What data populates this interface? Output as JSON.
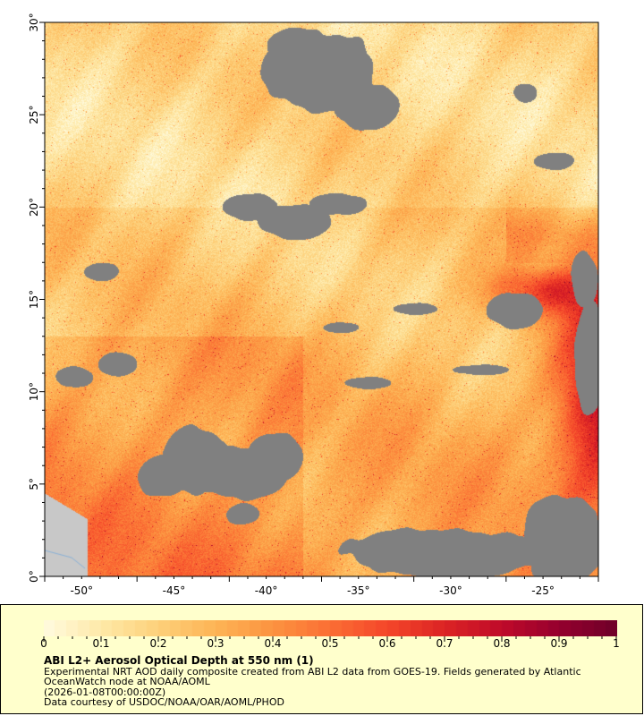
{
  "map": {
    "lon_range": [
      -52,
      -22
    ],
    "lat_range": [
      0,
      30
    ],
    "lon_ticks": [
      "-50°",
      "-45°",
      "-40°",
      "-35°",
      "-30°",
      "-25°"
    ],
    "lat_ticks": [
      "0°",
      "5°",
      "10°",
      "15°",
      "20°",
      "25°",
      "30°"
    ],
    "no_data_color": "#808080",
    "land_color": "#c8c8c8"
  },
  "legend": {
    "colorbar_range": [
      0,
      1
    ],
    "colorbar_ticks": [
      "0",
      "0.1",
      "0.2",
      "0.3",
      "0.4",
      "0.5",
      "0.6",
      "0.7",
      "0.8",
      "0.9",
      "1"
    ],
    "colormap": [
      "#fffbe0",
      "#fee9a8",
      "#fdd07a",
      "#fdb455",
      "#fc9340",
      "#fb6e34",
      "#f4462a",
      "#dc2424",
      "#bf0a2a",
      "#95002e",
      "#6e0028"
    ],
    "title": "ABI L2+ Aerosol Optical Depth at 550 nm (1)",
    "description_line1": "Experimental NRT AOD daily composite created from ABI L2 data from GOES-19. Fields generated by Atlantic",
    "description_line2": "OceanWatch node at NOAA/AOML",
    "time": "(2026-01-08T00:00:00Z)",
    "credit": "Data courtesy of USDOC/NOAA/OAR/AOML/PHOD"
  }
}
